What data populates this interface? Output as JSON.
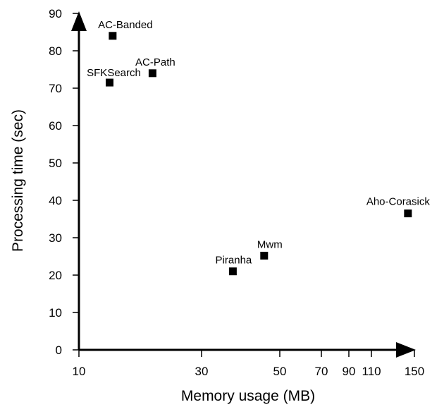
{
  "chart_data": {
    "type": "scatter",
    "xlabel": "Memory usage (MB)",
    "ylabel": "Processing time (sec)",
    "xlim": [
      10,
      150
    ],
    "ylim": [
      0,
      90
    ],
    "x_ticks": [
      10,
      30,
      50,
      70,
      90,
      110,
      150
    ],
    "y_ticks": [
      0,
      10,
      20,
      30,
      40,
      50,
      60,
      70,
      80,
      90
    ],
    "grid": false,
    "points": [
      {
        "label": "AC-Banded",
        "x": 15.5,
        "y": 84
      },
      {
        "label": "AC-Path",
        "x": 22,
        "y": 74
      },
      {
        "label": "SFKSearch",
        "x": 15,
        "y": 71.5
      },
      {
        "label": "Aho-Corasick",
        "x": 144,
        "y": 36.5
      },
      {
        "label": "Mwm",
        "x": 46,
        "y": 25.2
      },
      {
        "label": "Piranha",
        "x": 38,
        "y": 21
      }
    ]
  }
}
